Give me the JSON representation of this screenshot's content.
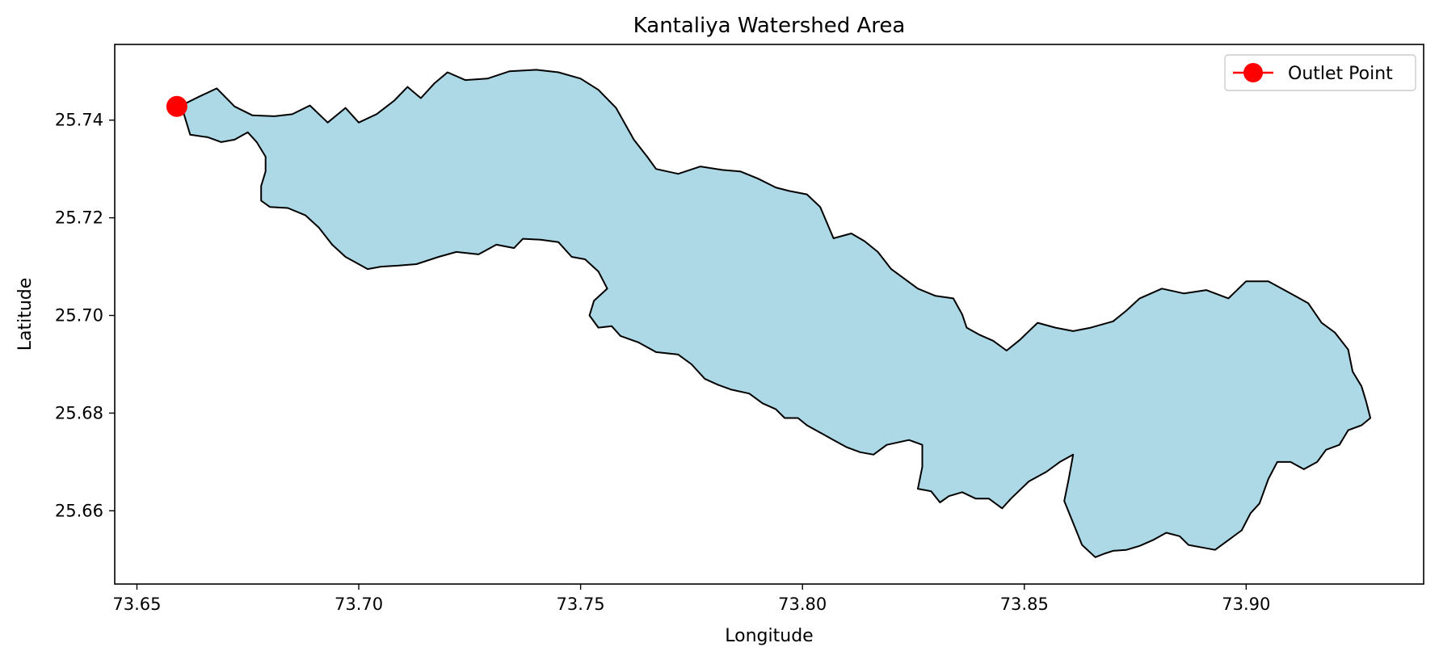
{
  "chart_data": {
    "type": "area",
    "title": "Kantaliya Watershed Area",
    "xlabel": "Longitude",
    "ylabel": "Latitude",
    "xlim": [
      73.645,
      73.94
    ],
    "ylim": [
      25.645,
      25.7555
    ],
    "xticks": [
      "73.65",
      "73.70",
      "73.75",
      "73.80",
      "73.85",
      "73.90"
    ],
    "yticks": [
      "25.66",
      "25.68",
      "25.70",
      "25.72",
      "25.74"
    ],
    "grid": false,
    "legend": {
      "position": "upper right",
      "entries": [
        {
          "label": "Outlet Point",
          "color": "#ff0000",
          "marker": "circle"
        }
      ]
    },
    "series": [
      {
        "kind": "polygon",
        "fill": "#add8e6",
        "edge": "#000000",
        "boundary": [
          [
            73.66,
            25.743
          ],
          [
            73.664,
            25.7448
          ],
          [
            73.668,
            25.7465
          ],
          [
            73.672,
            25.7428
          ],
          [
            73.676,
            25.741
          ],
          [
            73.681,
            25.7408
          ],
          [
            73.685,
            25.7412
          ],
          [
            73.689,
            25.743
          ],
          [
            73.693,
            25.7395
          ],
          [
            73.697,
            25.7425
          ],
          [
            73.7,
            25.7395
          ],
          [
            73.704,
            25.7412
          ],
          [
            73.708,
            25.744
          ],
          [
            73.711,
            25.7468
          ],
          [
            73.714,
            25.7445
          ],
          [
            73.717,
            25.7475
          ],
          [
            73.72,
            25.7498
          ],
          [
            73.724,
            25.7482
          ],
          [
            73.729,
            25.7485
          ],
          [
            73.734,
            25.75
          ],
          [
            73.74,
            25.7503
          ],
          [
            73.745,
            25.7498
          ],
          [
            73.75,
            25.7485
          ],
          [
            73.754,
            25.7462
          ],
          [
            73.758,
            25.7425
          ],
          [
            73.762,
            25.736
          ],
          [
            73.765,
            25.7325
          ],
          [
            73.767,
            25.73
          ],
          [
            73.772,
            25.729
          ],
          [
            73.777,
            25.7305
          ],
          [
            73.782,
            25.7298
          ],
          [
            73.786,
            25.7295
          ],
          [
            73.79,
            25.728
          ],
          [
            73.794,
            25.7262
          ],
          [
            73.797,
            25.7255
          ],
          [
            73.801,
            25.7248
          ],
          [
            73.804,
            25.7222
          ],
          [
            73.807,
            25.7158
          ],
          [
            73.811,
            25.7168
          ],
          [
            73.814,
            25.7152
          ],
          [
            73.817,
            25.713
          ],
          [
            73.82,
            25.7095
          ],
          [
            73.823,
            25.7075
          ],
          [
            73.826,
            25.7055
          ],
          [
            73.83,
            25.704
          ],
          [
            73.834,
            25.7035
          ],
          [
            73.836,
            25.7002
          ],
          [
            73.837,
            25.6975
          ],
          [
            73.84,
            25.696
          ],
          [
            73.843,
            25.6948
          ],
          [
            73.846,
            25.6928
          ],
          [
            73.849,
            25.695
          ],
          [
            73.853,
            25.6985
          ],
          [
            73.857,
            25.6975
          ],
          [
            73.861,
            25.6968
          ],
          [
            73.865,
            25.6975
          ],
          [
            73.87,
            25.6988
          ],
          [
            73.873,
            25.701
          ],
          [
            73.876,
            25.7035
          ],
          [
            73.881,
            25.7055
          ],
          [
            73.886,
            25.7045
          ],
          [
            73.891,
            25.7052
          ],
          [
            73.896,
            25.7035
          ],
          [
            73.9,
            25.707
          ],
          [
            73.905,
            25.707
          ],
          [
            73.91,
            25.7045
          ],
          [
            73.914,
            25.7025
          ],
          [
            73.917,
            25.6985
          ],
          [
            73.92,
            25.6965
          ],
          [
            73.923,
            25.693
          ],
          [
            73.924,
            25.6885
          ],
          [
            73.926,
            25.6855
          ],
          [
            73.927,
            25.6825
          ],
          [
            73.928,
            25.679
          ],
          [
            73.926,
            25.6775
          ],
          [
            73.923,
            25.6765
          ],
          [
            73.921,
            25.6735
          ],
          [
            73.918,
            25.6725
          ],
          [
            73.916,
            25.67
          ],
          [
            73.913,
            25.6685
          ],
          [
            73.91,
            25.67
          ],
          [
            73.907,
            25.67
          ],
          [
            73.905,
            25.6665
          ],
          [
            73.903,
            25.6615
          ],
          [
            73.901,
            25.6595
          ],
          [
            73.899,
            25.656
          ],
          [
            73.896,
            25.654
          ],
          [
            73.893,
            25.652
          ],
          [
            73.89,
            25.6525
          ],
          [
            73.887,
            25.653
          ],
          [
            73.885,
            25.6548
          ],
          [
            73.882,
            25.6555
          ],
          [
            73.879,
            25.654
          ],
          [
            73.876,
            25.6528
          ],
          [
            73.873,
            25.652
          ],
          [
            73.87,
            25.6518
          ],
          [
            73.868,
            25.6512
          ],
          [
            73.866,
            25.6505
          ],
          [
            73.863,
            25.653
          ],
          [
            73.861,
            25.6575
          ],
          [
            73.859,
            25.662
          ],
          [
            73.86,
            25.6665
          ],
          [
            73.861,
            25.6715
          ],
          [
            73.858,
            25.67
          ],
          [
            73.855,
            25.668
          ],
          [
            73.851,
            25.666
          ],
          [
            73.847,
            25.6625
          ],
          [
            73.845,
            25.6605
          ],
          [
            73.842,
            25.6625
          ],
          [
            73.839,
            25.6625
          ],
          [
            73.836,
            25.6638
          ],
          [
            73.833,
            25.663
          ],
          [
            73.831,
            25.6617
          ],
          [
            73.829,
            25.664
          ],
          [
            73.826,
            25.6645
          ],
          [
            73.827,
            25.669
          ],
          [
            73.827,
            25.6735
          ],
          [
            73.824,
            25.6745
          ],
          [
            73.819,
            25.6735
          ],
          [
            73.816,
            25.6715
          ],
          [
            73.813,
            25.672
          ],
          [
            73.81,
            25.673
          ],
          [
            73.807,
            25.6745
          ],
          [
            73.804,
            25.676
          ],
          [
            73.801,
            25.6775
          ],
          [
            73.799,
            25.679
          ],
          [
            73.796,
            25.679
          ],
          [
            73.794,
            25.6808
          ],
          [
            73.791,
            25.682
          ],
          [
            73.788,
            25.684
          ],
          [
            73.784,
            25.6848
          ],
          [
            73.781,
            25.6858
          ],
          [
            73.778,
            25.687
          ],
          [
            73.775,
            25.69
          ],
          [
            73.772,
            25.692
          ],
          [
            73.767,
            25.6925
          ],
          [
            73.763,
            25.6945
          ],
          [
            73.759,
            25.6958
          ],
          [
            73.757,
            25.6978
          ],
          [
            73.754,
            25.6975
          ],
          [
            73.752,
            25.7
          ],
          [
            73.753,
            25.703
          ],
          [
            73.756,
            25.7055
          ],
          [
            73.754,
            25.709
          ],
          [
            73.751,
            25.7115
          ],
          [
            73.748,
            25.712
          ],
          [
            73.745,
            25.715
          ],
          [
            73.741,
            25.7155
          ],
          [
            73.737,
            25.7157
          ],
          [
            73.735,
            25.7138
          ],
          [
            73.731,
            25.7145
          ],
          [
            73.727,
            25.7125
          ],
          [
            73.722,
            25.713
          ],
          [
            73.718,
            25.712
          ],
          [
            73.713,
            25.7105
          ],
          [
            73.709,
            25.7102
          ],
          [
            73.705,
            25.71
          ],
          [
            73.702,
            25.7095
          ],
          [
            73.7,
            25.7105
          ],
          [
            73.697,
            25.712
          ],
          [
            73.694,
            25.7145
          ],
          [
            73.691,
            25.718
          ],
          [
            73.688,
            25.7205
          ],
          [
            73.684,
            25.722
          ],
          [
            73.68,
            25.7222
          ],
          [
            73.678,
            25.7235
          ],
          [
            73.678,
            25.7265
          ],
          [
            73.679,
            25.7295
          ],
          [
            73.679,
            25.7325
          ],
          [
            73.677,
            25.7355
          ],
          [
            73.675,
            25.7375
          ],
          [
            73.672,
            25.736
          ],
          [
            73.669,
            25.7355
          ],
          [
            73.666,
            25.7365
          ],
          [
            73.662,
            25.737
          ],
          [
            73.661,
            25.74
          ]
        ]
      },
      {
        "kind": "point",
        "name": "Outlet Point",
        "color": "#ff0000",
        "x": 73.659,
        "y": 25.7428
      }
    ]
  }
}
